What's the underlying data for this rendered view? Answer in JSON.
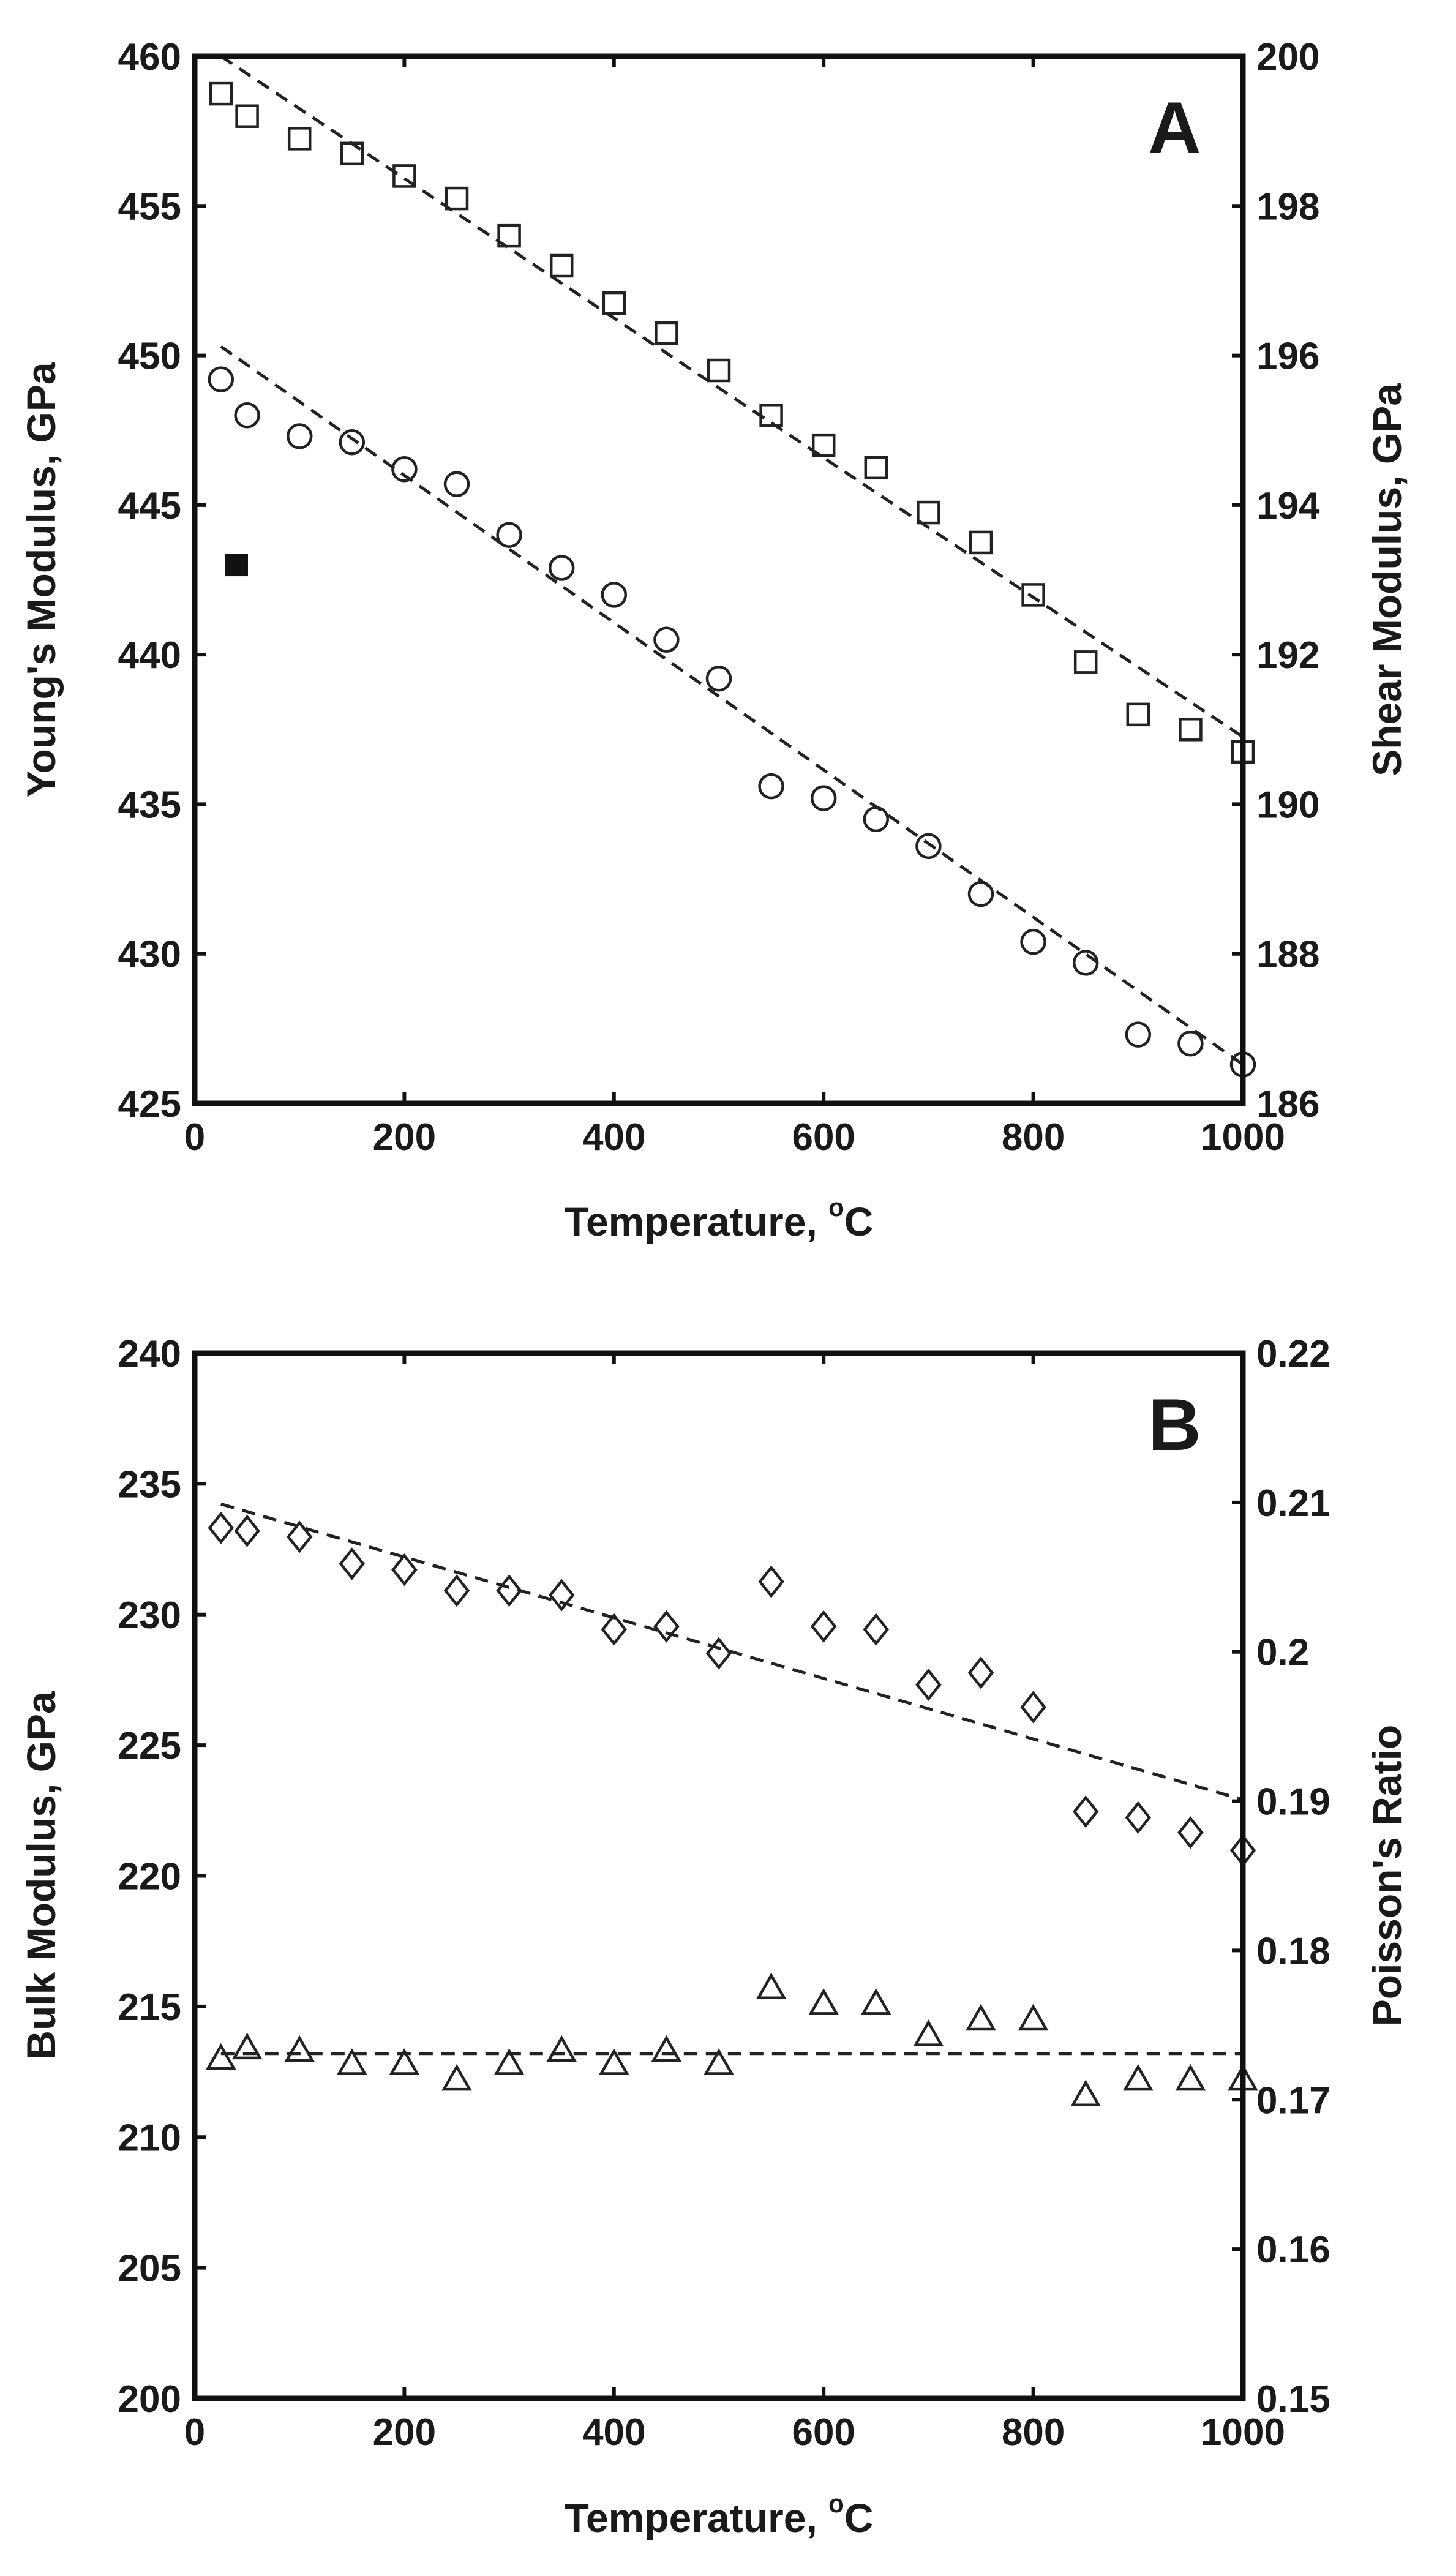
{
  "chart_data": [
    {
      "type": "scatter",
      "panel": "A",
      "xlabel": "Temperature, ",
      "xlabel_sup": "o",
      "xlabel_unit": "C",
      "ylabel": "Young's Modulus, GPa",
      "ylabel_right": "Shear Modulus, GPa",
      "xlim": [
        0,
        1000
      ],
      "ylim": [
        425,
        460
      ],
      "ylim_right": [
        186,
        200
      ],
      "xticks": [
        "0",
        "200",
        "400",
        "600",
        "800",
        "1000"
      ],
      "yticks": [
        "425",
        "430",
        "435",
        "440",
        "445",
        "450",
        "455",
        "460"
      ],
      "yticks_right": [
        "186",
        "188",
        "190",
        "192",
        "194",
        "196",
        "198",
        "200"
      ],
      "series": [
        {
          "name": "Shear Modulus",
          "axis": "right",
          "marker": "square",
          "x": [
            25,
            50,
            100,
            150,
            200,
            250,
            300,
            350,
            400,
            450,
            500,
            550,
            600,
            650,
            700,
            750,
            800,
            850,
            900,
            950,
            1000
          ],
          "values": [
            199.5,
            199.2,
            198.9,
            198.7,
            198.4,
            198.1,
            197.6,
            197.2,
            196.7,
            196.3,
            195.8,
            195.2,
            194.8,
            194.5,
            193.9,
            193.5,
            192.8,
            191.9,
            191.2,
            191.0,
            190.7
          ],
          "fit": {
            "x": [
              25,
              1000
            ],
            "y": [
              200.0,
              190.9
            ]
          }
        },
        {
          "name": "Young's Modulus",
          "axis": "left",
          "marker": "circle",
          "x": [
            25,
            50,
            100,
            150,
            200,
            250,
            300,
            350,
            400,
            450,
            500,
            550,
            600,
            650,
            700,
            750,
            800,
            850,
            900,
            950,
            1000
          ],
          "values": [
            449.2,
            448.0,
            447.3,
            447.1,
            446.2,
            445.7,
            444.0,
            442.9,
            442.0,
            440.5,
            439.2,
            435.6,
            435.2,
            434.5,
            433.6,
            432.0,
            430.4,
            429.7,
            427.3,
            427.0,
            426.3
          ],
          "fit": {
            "x": [
              25,
              1000
            ],
            "y": [
              450.3,
              426.3
            ]
          }
        },
        {
          "name": "Reference point",
          "axis": "left",
          "marker": "filled-square",
          "x": [
            40
          ],
          "values": [
            443.0
          ]
        }
      ]
    },
    {
      "type": "scatter",
      "panel": "B",
      "xlabel": "Temperature, ",
      "xlabel_sup": "o",
      "xlabel_unit": "C",
      "ylabel": "Bulk Modulus, GPa",
      "ylabel_right": "Poisson's Ratio",
      "xlim": [
        0,
        1000
      ],
      "ylim": [
        200,
        240
      ],
      "ylim_right": [
        0.15,
        0.22
      ],
      "xticks": [
        "0",
        "200",
        "400",
        "600",
        "800",
        "1000"
      ],
      "yticks": [
        "200",
        "205",
        "210",
        "215",
        "220",
        "225",
        "230",
        "235",
        "240"
      ],
      "yticks_right": [
        "0.15",
        "0.16",
        "0.17",
        "0.18",
        "0.19",
        "0.2",
        "0.21",
        "0.22"
      ],
      "series": [
        {
          "name": "Poisson's Ratio",
          "axis": "right",
          "marker": "diamond",
          "x": [
            25,
            50,
            100,
            150,
            200,
            250,
            300,
            350,
            400,
            450,
            500,
            550,
            600,
            650,
            700,
            750,
            800,
            850,
            900,
            950,
            1000
          ],
          "values": [
            0.2083,
            0.2081,
            0.2077,
            0.2059,
            0.2055,
            0.2041,
            0.2041,
            0.2038,
            0.2015,
            0.2017,
            0.1999,
            0.2047,
            0.2017,
            0.2015,
            0.1978,
            0.1986,
            0.1963,
            0.1893,
            0.1889,
            0.1879,
            0.1867
          ],
          "fit": {
            "x": [
              25,
              1000
            ],
            "y": [
              0.2099,
              0.1901
            ]
          }
        },
        {
          "name": "Bulk Modulus",
          "axis": "left",
          "marker": "triangle",
          "x": [
            25,
            50,
            100,
            150,
            200,
            250,
            300,
            350,
            400,
            450,
            500,
            550,
            600,
            650,
            700,
            750,
            800,
            850,
            900,
            950,
            1000
          ],
          "values": [
            213.0,
            213.4,
            213.3,
            212.8,
            212.8,
            212.2,
            212.8,
            213.3,
            212.8,
            213.3,
            212.8,
            215.7,
            215.1,
            215.1,
            213.9,
            214.5,
            214.5,
            211.6,
            212.2,
            212.2,
            212.2
          ],
          "fit": {
            "x": [
              25,
              1000
            ],
            "y": [
              213.2,
              213.2
            ]
          }
        }
      ]
    }
  ]
}
